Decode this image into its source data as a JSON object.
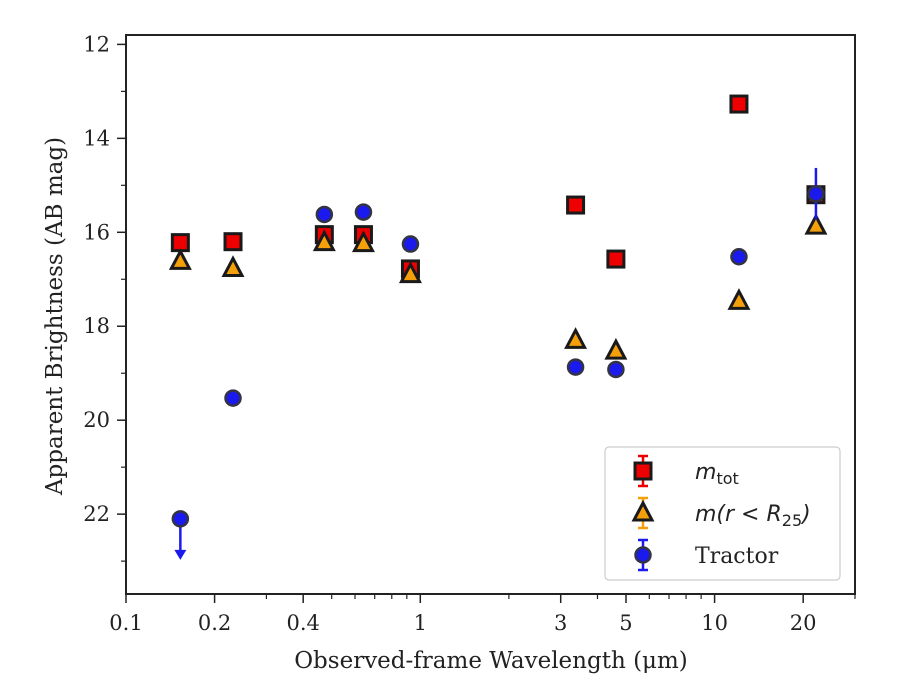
{
  "chart_data": {
    "type": "scatter",
    "xlabel": "Observed-frame Wavelength (μm)",
    "ylabel": "Apparent Brightness (AB mag)",
    "x_scale": "log",
    "xlim": [
      0.1,
      30
    ],
    "ylim": [
      23.7,
      11.8
    ],
    "y_inverted": true,
    "x_ticks": [
      {
        "value": 0.1,
        "label": "0.1"
      },
      {
        "value": 0.2,
        "label": "0.2"
      },
      {
        "value": 0.4,
        "label": "0.4"
      },
      {
        "value": 1,
        "label": "1"
      },
      {
        "value": 3,
        "label": "3"
      },
      {
        "value": 5,
        "label": "5"
      },
      {
        "value": 10,
        "label": "10"
      },
      {
        "value": 20,
        "label": "20"
      }
    ],
    "y_ticks": [
      {
        "value": 12,
        "label": "12"
      },
      {
        "value": 14,
        "label": "14"
      },
      {
        "value": 16,
        "label": "16"
      },
      {
        "value": 18,
        "label": "18"
      },
      {
        "value": 20,
        "label": "20"
      },
      {
        "value": 22,
        "label": "22"
      }
    ],
    "grid": false,
    "legend_position": "bottom-right",
    "series": [
      {
        "name": "m_tot",
        "legend_main": "m",
        "legend_sub": "tot",
        "marker": "square",
        "color": "#ee0000",
        "points": [
          {
            "x": 0.153,
            "y": 16.22
          },
          {
            "x": 0.231,
            "y": 16.2
          },
          {
            "x": 0.472,
            "y": 16.05
          },
          {
            "x": 0.641,
            "y": 16.05
          },
          {
            "x": 0.926,
            "y": 16.78
          },
          {
            "x": 3.37,
            "y": 15.42
          },
          {
            "x": 4.62,
            "y": 16.57
          },
          {
            "x": 12.1,
            "y": 13.27
          },
          {
            "x": 22.1,
            "y": 15.2
          }
        ]
      },
      {
        "name": "m(r < R_25)",
        "legend_main": "m(r < R",
        "legend_sub": "25",
        "legend_close": ")",
        "marker": "triangle",
        "color": "#f5a00a",
        "points": [
          {
            "x": 0.153,
            "y": 16.62
          },
          {
            "x": 0.231,
            "y": 16.77
          },
          {
            "x": 0.472,
            "y": 16.22
          },
          {
            "x": 0.641,
            "y": 16.24
          },
          {
            "x": 0.926,
            "y": 16.9
          },
          {
            "x": 3.37,
            "y": 18.3
          },
          {
            "x": 4.62,
            "y": 18.53
          },
          {
            "x": 12.1,
            "y": 17.47
          },
          {
            "x": 22.1,
            "y": 15.87
          }
        ]
      },
      {
        "name": "Tractor",
        "marker": "circle",
        "color": "#1a1aee",
        "points": [
          {
            "x": 0.153,
            "y": 22.1,
            "upper_limit": true
          },
          {
            "x": 0.231,
            "y": 19.53
          },
          {
            "x": 0.472,
            "y": 15.62
          },
          {
            "x": 0.641,
            "y": 15.57
          },
          {
            "x": 0.926,
            "y": 16.25
          },
          {
            "x": 3.37,
            "y": 18.87
          },
          {
            "x": 4.62,
            "y": 18.92
          },
          {
            "x": 12.1,
            "y": 16.52
          },
          {
            "x": 22.1,
            "y": 15.18,
            "err": 0.55
          }
        ]
      }
    ]
  }
}
